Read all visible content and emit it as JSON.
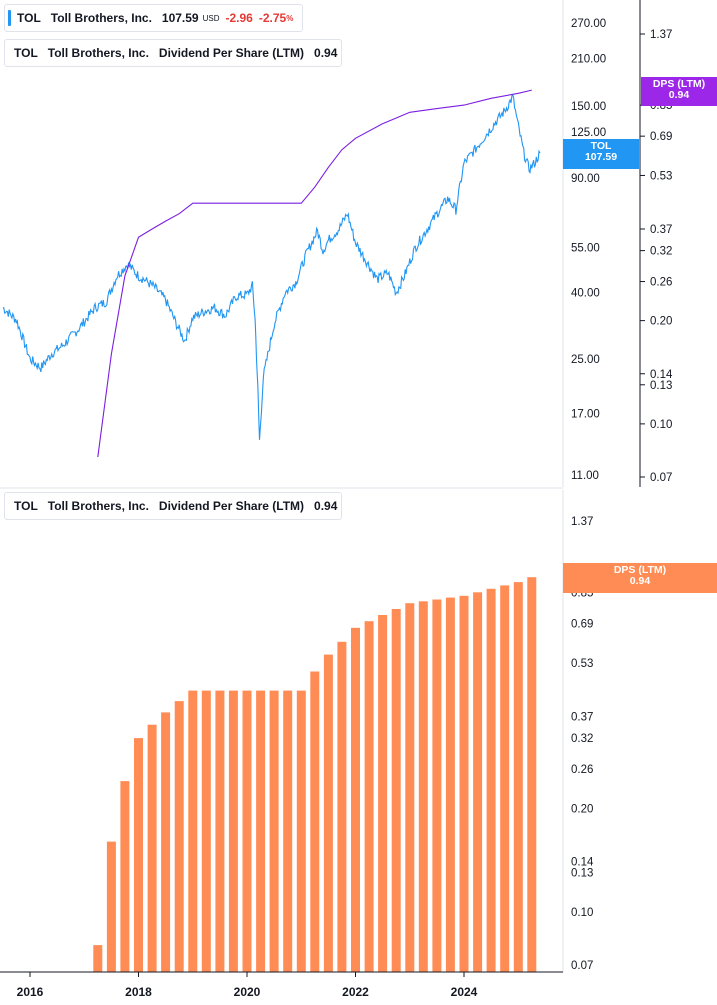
{
  "legend_price": {
    "symbol": "TOL",
    "name": "Toll Brothers, Inc.",
    "value": "107.59",
    "unit": "USD",
    "change": "-2.96",
    "change_pct": "-2.75",
    "pct_sign": "%",
    "color": "#2196f3"
  },
  "legend_dps_top": {
    "symbol": "TOL",
    "name": "Toll Brothers, Inc.",
    "series": "Dividend Per Share (LTM)",
    "value": "0.94",
    "color": "#7b1fe0"
  },
  "legend_dps_bottom": {
    "symbol": "TOL",
    "name": "Toll Brothers, Inc.",
    "series": "Dividend Per Share (LTM)",
    "value": "0.94",
    "color": "#ff8c55"
  },
  "tags": {
    "price": {
      "line1": "TOL",
      "line2": "107.59",
      "color": "#2196f3"
    },
    "dps_top": {
      "line1": "DPS (LTM)",
      "line2": "0.94",
      "color": "#9c27e8"
    },
    "dps_bottom": {
      "line1": "DPS (LTM)",
      "line2": "0.94",
      "color": "#ff8c55"
    }
  },
  "chart_data": [
    {
      "type": "line",
      "scale": "log",
      "x_ticks": [
        "2016",
        "2018",
        "2020",
        "2022",
        "2024"
      ],
      "price_axis_ticks": [
        "270.00",
        "210.00",
        "150.00",
        "125.00",
        "90.00",
        "55.00",
        "40.00",
        "25.00",
        "17.00",
        "11.00"
      ],
      "dps_axis_ticks": [
        "1.37",
        "0.85",
        "0.69",
        "0.53",
        "0.37",
        "0.32",
        "0.26",
        "0.20",
        "0.14",
        "0.13",
        "0.10",
        "0.07"
      ],
      "series": [
        {
          "name": "TOL",
          "color": "#2196f3",
          "last": 107.59,
          "points": [
            [
              2015.5,
              36
            ],
            [
              2015.75,
              33
            ],
            [
              2016.0,
              25
            ],
            [
              2016.2,
              23.5
            ],
            [
              2016.4,
              26
            ],
            [
              2016.6,
              27.5
            ],
            [
              2016.9,
              31
            ],
            [
              2017.2,
              36
            ],
            [
              2017.4,
              37.5
            ],
            [
              2017.6,
              45
            ],
            [
              2017.8,
              49
            ],
            [
              2018.0,
              45
            ],
            [
              2018.1,
              44
            ],
            [
              2018.3,
              41.5
            ],
            [
              2018.5,
              38
            ],
            [
              2018.7,
              32
            ],
            [
              2018.85,
              28.5
            ],
            [
              2019.0,
              33.5
            ],
            [
              2019.2,
              35
            ],
            [
              2019.4,
              36
            ],
            [
              2019.6,
              34
            ],
            [
              2019.8,
              39
            ],
            [
              2020.0,
              39.5
            ],
            [
              2020.1,
              42
            ],
            [
              2020.15,
              33
            ],
            [
              2020.2,
              20
            ],
            [
              2020.23,
              14
            ],
            [
              2020.3,
              22
            ],
            [
              2020.5,
              32
            ],
            [
              2020.7,
              40
            ],
            [
              2020.9,
              43
            ],
            [
              2021.1,
              53
            ],
            [
              2021.3,
              62
            ],
            [
              2021.4,
              54
            ],
            [
              2021.5,
              58
            ],
            [
              2021.7,
              63
            ],
            [
              2021.85,
              70
            ],
            [
              2022.0,
              57
            ],
            [
              2022.2,
              50
            ],
            [
              2022.4,
              44
            ],
            [
              2022.6,
              46
            ],
            [
              2022.75,
              40
            ],
            [
              2022.9,
              45
            ],
            [
              2023.1,
              55
            ],
            [
              2023.3,
              62
            ],
            [
              2023.5,
              70
            ],
            [
              2023.7,
              78
            ],
            [
              2023.85,
              72
            ],
            [
              2024.0,
              100
            ],
            [
              2024.2,
              110
            ],
            [
              2024.4,
              122
            ],
            [
              2024.6,
              135
            ],
            [
              2024.75,
              145
            ],
            [
              2024.9,
              160
            ],
            [
              2025.0,
              130
            ],
            [
              2025.1,
              108
            ],
            [
              2025.2,
              96
            ],
            [
              2025.3,
              100
            ],
            [
              2025.4,
              107.59
            ]
          ]
        },
        {
          "name": "Dividend Per Share (LTM)",
          "color": "#7b1fe0",
          "last": 0.94,
          "points": [
            [
              2017.25,
              0.08
            ],
            [
              2017.5,
              0.16
            ],
            [
              2017.75,
              0.27
            ],
            [
              2018.0,
              0.35
            ],
            [
              2018.25,
              0.37
            ],
            [
              2018.5,
              0.39
            ],
            [
              2018.75,
              0.41
            ],
            [
              2019.0,
              0.44
            ],
            [
              2020.0,
              0.44
            ],
            [
              2021.0,
              0.44
            ],
            [
              2021.25,
              0.49
            ],
            [
              2021.5,
              0.56
            ],
            [
              2021.75,
              0.63
            ],
            [
              2022.0,
              0.68
            ],
            [
              2022.5,
              0.75
            ],
            [
              2023.0,
              0.81
            ],
            [
              2023.5,
              0.83
            ],
            [
              2024.0,
              0.85
            ],
            [
              2024.5,
              0.89
            ],
            [
              2025.0,
              0.92
            ],
            [
              2025.25,
              0.94
            ]
          ]
        }
      ]
    },
    {
      "type": "bar",
      "scale": "log",
      "x_ticks": [
        "2016",
        "2018",
        "2020",
        "2022",
        "2024"
      ],
      "y_ticks": [
        "1.37",
        "0.85",
        "0.69",
        "0.53",
        "0.37",
        "0.32",
        "0.26",
        "0.20",
        "0.14",
        "0.13",
        "0.10",
        "0.07"
      ],
      "series": [
        {
          "name": "Dividend Per Share (LTM)",
          "color": "#ff8c55"
        }
      ],
      "x": [
        2017.25,
        2017.5,
        2017.75,
        2018.0,
        2018.25,
        2018.5,
        2018.75,
        2019.0,
        2019.25,
        2019.5,
        2019.75,
        2020.0,
        2020.25,
        2020.5,
        2020.75,
        2021.0,
        2021.25,
        2021.5,
        2021.75,
        2022.0,
        2022.25,
        2022.5,
        2022.75,
        2023.0,
        2023.25,
        2023.5,
        2023.75,
        2024.0,
        2024.25,
        2024.5,
        2024.75,
        2025.0,
        2025.25
      ],
      "values": [
        0.08,
        0.16,
        0.24,
        0.32,
        0.35,
        0.38,
        0.41,
        0.44,
        0.44,
        0.44,
        0.44,
        0.44,
        0.44,
        0.44,
        0.44,
        0.44,
        0.5,
        0.56,
        0.61,
        0.67,
        0.7,
        0.73,
        0.76,
        0.79,
        0.8,
        0.81,
        0.82,
        0.83,
        0.85,
        0.87,
        0.89,
        0.91,
        0.94
      ]
    }
  ]
}
